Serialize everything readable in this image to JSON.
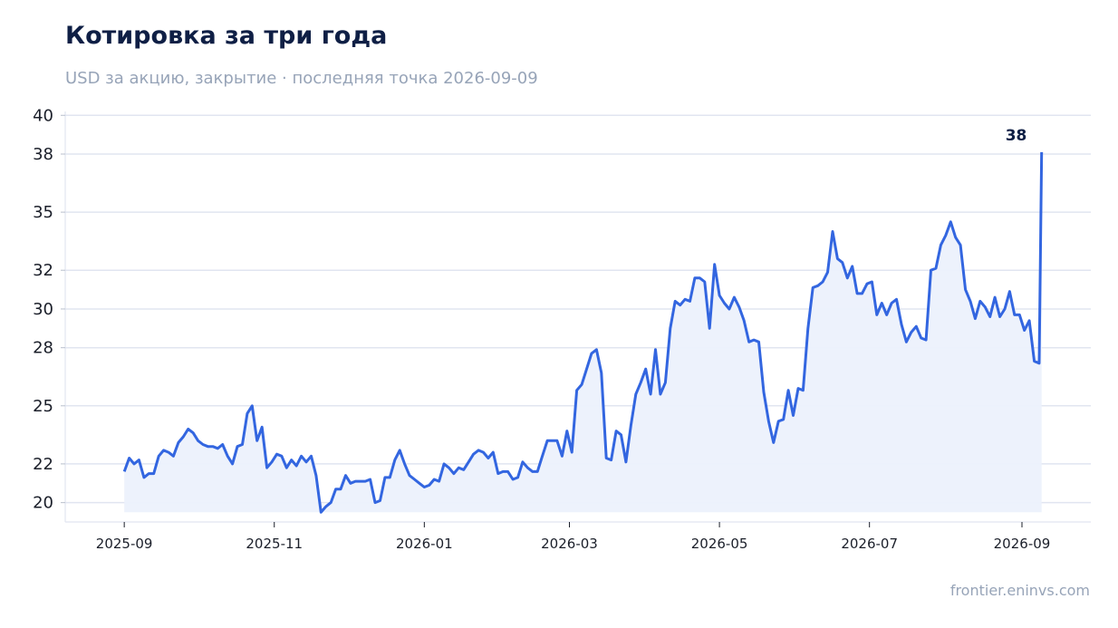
{
  "header": {
    "title": "Котировка за три года",
    "subtitle": "USD за акцию, закрытие · последняя точка 2026-09-09"
  },
  "footer": {
    "source": "frontier.eninvs.com"
  },
  "colors": {
    "line": "#3366e0",
    "fill": "#ecf1fc",
    "grid": "#e1e5f0",
    "title": "#0f1f45",
    "muted": "#97a4b8"
  },
  "chart_data": {
    "type": "line",
    "title": "Котировка за три года",
    "subtitle": "USD за акцию, закрытие · последняя точка 2026-09-09",
    "xlabel": "",
    "ylabel": "",
    "ylim": [
      19.0,
      40.2
    ],
    "xlim": [
      "2025-08-08",
      "2026-09-29"
    ],
    "grid": true,
    "y_ticks": [
      20,
      22,
      25,
      28,
      30,
      32,
      35,
      38,
      40
    ],
    "y_tick_labels": [
      "20",
      "22",
      "25",
      "28",
      "30",
      "32",
      "35",
      "38",
      "40"
    ],
    "x_ticks": [
      "2025-09-01",
      "2025-11-01",
      "2026-01-01",
      "2026-03-01",
      "2026-05-01",
      "2026-07-01",
      "2026-09-01"
    ],
    "x_tick_labels": [
      "2025-09",
      "2025-11",
      "2026-01",
      "2026-03",
      "2026-05",
      "2026-07",
      "2026-09"
    ],
    "last_value_label": "38",
    "series": [
      {
        "points": [
          [
            "2025-09-01",
            21.6
          ],
          [
            "2025-09-03",
            22.3
          ],
          [
            "2025-09-05",
            22.0
          ],
          [
            "2025-09-07",
            22.2
          ],
          [
            "2025-09-09",
            21.3
          ],
          [
            "2025-09-11",
            21.5
          ],
          [
            "2025-09-13",
            21.5
          ],
          [
            "2025-09-15",
            22.4
          ],
          [
            "2025-09-17",
            22.7
          ],
          [
            "2025-09-19",
            22.6
          ],
          [
            "2025-09-21",
            22.4
          ],
          [
            "2025-09-23",
            23.1
          ],
          [
            "2025-09-25",
            23.4
          ],
          [
            "2025-09-27",
            23.8
          ],
          [
            "2025-09-29",
            23.6
          ],
          [
            "2025-10-01",
            23.2
          ],
          [
            "2025-10-03",
            23.0
          ],
          [
            "2025-10-05",
            22.9
          ],
          [
            "2025-10-07",
            22.9
          ],
          [
            "2025-10-09",
            22.8
          ],
          [
            "2025-10-11",
            23.0
          ],
          [
            "2025-10-13",
            22.4
          ],
          [
            "2025-10-15",
            22.0
          ],
          [
            "2025-10-17",
            22.9
          ],
          [
            "2025-10-19",
            23.0
          ],
          [
            "2025-10-21",
            24.6
          ],
          [
            "2025-10-23",
            25.0
          ],
          [
            "2025-10-25",
            23.2
          ],
          [
            "2025-10-27",
            23.9
          ],
          [
            "2025-10-29",
            21.8
          ],
          [
            "2025-10-31",
            22.1
          ],
          [
            "2025-11-02",
            22.5
          ],
          [
            "2025-11-04",
            22.4
          ],
          [
            "2025-11-06",
            21.8
          ],
          [
            "2025-11-08",
            22.2
          ],
          [
            "2025-11-10",
            21.9
          ],
          [
            "2025-11-12",
            22.4
          ],
          [
            "2025-11-14",
            22.1
          ],
          [
            "2025-11-16",
            22.4
          ],
          [
            "2025-11-18",
            21.4
          ],
          [
            "2025-11-20",
            19.5
          ],
          [
            "2025-11-22",
            19.8
          ],
          [
            "2025-11-24",
            20.0
          ],
          [
            "2025-11-26",
            20.7
          ],
          [
            "2025-11-28",
            20.7
          ],
          [
            "2025-11-30",
            21.4
          ],
          [
            "2025-12-02",
            21.0
          ],
          [
            "2025-12-04",
            21.1
          ],
          [
            "2025-12-06",
            21.1
          ],
          [
            "2025-12-08",
            21.1
          ],
          [
            "2025-12-10",
            21.2
          ],
          [
            "2025-12-12",
            20.0
          ],
          [
            "2025-12-14",
            20.1
          ],
          [
            "2025-12-16",
            21.3
          ],
          [
            "2025-12-18",
            21.3
          ],
          [
            "2025-12-20",
            22.2
          ],
          [
            "2025-12-22",
            22.7
          ],
          [
            "2025-12-24",
            22.0
          ],
          [
            "2025-12-26",
            21.4
          ],
          [
            "2025-12-28",
            21.2
          ],
          [
            "2025-12-30",
            21.0
          ],
          [
            "2026-01-01",
            20.8
          ],
          [
            "2026-01-03",
            20.9
          ],
          [
            "2026-01-05",
            21.2
          ],
          [
            "2026-01-07",
            21.1
          ],
          [
            "2026-01-09",
            22.0
          ],
          [
            "2026-01-11",
            21.8
          ],
          [
            "2026-01-13",
            21.5
          ],
          [
            "2026-01-15",
            21.8
          ],
          [
            "2026-01-17",
            21.7
          ],
          [
            "2026-01-19",
            22.1
          ],
          [
            "2026-01-21",
            22.5
          ],
          [
            "2026-01-23",
            22.7
          ],
          [
            "2026-01-25",
            22.6
          ],
          [
            "2026-01-27",
            22.3
          ],
          [
            "2026-01-29",
            22.6
          ],
          [
            "2026-01-31",
            21.5
          ],
          [
            "2026-02-02",
            21.6
          ],
          [
            "2026-02-04",
            21.6
          ],
          [
            "2026-02-06",
            21.2
          ],
          [
            "2026-02-08",
            21.3
          ],
          [
            "2026-02-10",
            22.1
          ],
          [
            "2026-02-12",
            21.8
          ],
          [
            "2026-02-14",
            21.6
          ],
          [
            "2026-02-16",
            21.6
          ],
          [
            "2026-02-18",
            22.4
          ],
          [
            "2026-02-20",
            23.2
          ],
          [
            "2026-02-22",
            23.2
          ],
          [
            "2026-02-24",
            23.2
          ],
          [
            "2026-02-26",
            22.4
          ],
          [
            "2026-02-28",
            23.7
          ],
          [
            "2026-03-02",
            22.6
          ],
          [
            "2026-03-04",
            25.8
          ],
          [
            "2026-03-06",
            26.1
          ],
          [
            "2026-03-08",
            26.9
          ],
          [
            "2026-03-10",
            27.7
          ],
          [
            "2026-03-12",
            27.9
          ],
          [
            "2026-03-14",
            26.7
          ],
          [
            "2026-03-16",
            22.3
          ],
          [
            "2026-03-18",
            22.2
          ],
          [
            "2026-03-20",
            23.7
          ],
          [
            "2026-03-22",
            23.5
          ],
          [
            "2026-03-24",
            22.1
          ],
          [
            "2026-03-26",
            24.0
          ],
          [
            "2026-03-28",
            25.6
          ],
          [
            "2026-03-30",
            26.2
          ],
          [
            "2026-04-01",
            26.9
          ],
          [
            "2026-04-03",
            25.6
          ],
          [
            "2026-04-05",
            27.9
          ],
          [
            "2026-04-07",
            25.6
          ],
          [
            "2026-04-09",
            26.2
          ],
          [
            "2026-04-11",
            29.0
          ],
          [
            "2026-04-13",
            30.4
          ],
          [
            "2026-04-15",
            30.2
          ],
          [
            "2026-04-17",
            30.5
          ],
          [
            "2026-04-19",
            30.4
          ],
          [
            "2026-04-21",
            31.6
          ],
          [
            "2026-04-23",
            31.6
          ],
          [
            "2026-04-25",
            31.4
          ],
          [
            "2026-04-27",
            29.0
          ],
          [
            "2026-04-29",
            32.3
          ],
          [
            "2026-05-01",
            30.7
          ],
          [
            "2026-05-03",
            30.3
          ],
          [
            "2026-05-05",
            30.0
          ],
          [
            "2026-05-07",
            30.6
          ],
          [
            "2026-05-09",
            30.1
          ],
          [
            "2026-05-11",
            29.4
          ],
          [
            "2026-05-13",
            28.3
          ],
          [
            "2026-05-15",
            28.4
          ],
          [
            "2026-05-17",
            28.3
          ],
          [
            "2026-05-19",
            25.7
          ],
          [
            "2026-05-21",
            24.2
          ],
          [
            "2026-05-23",
            23.1
          ],
          [
            "2026-05-25",
            24.2
          ],
          [
            "2026-05-27",
            24.3
          ],
          [
            "2026-05-29",
            25.8
          ],
          [
            "2026-05-31",
            24.5
          ],
          [
            "2026-06-02",
            25.9
          ],
          [
            "2026-06-04",
            25.8
          ],
          [
            "2026-06-06",
            29.0
          ],
          [
            "2026-06-08",
            31.1
          ],
          [
            "2026-06-10",
            31.2
          ],
          [
            "2026-06-12",
            31.4
          ],
          [
            "2026-06-14",
            31.9
          ],
          [
            "2026-06-16",
            34.0
          ],
          [
            "2026-06-18",
            32.6
          ],
          [
            "2026-06-20",
            32.4
          ],
          [
            "2026-06-22",
            31.6
          ],
          [
            "2026-06-24",
            32.2
          ],
          [
            "2026-06-26",
            30.8
          ],
          [
            "2026-06-28",
            30.8
          ],
          [
            "2026-06-30",
            31.3
          ],
          [
            "2026-07-02",
            31.4
          ],
          [
            "2026-07-04",
            29.7
          ],
          [
            "2026-07-06",
            30.3
          ],
          [
            "2026-07-08",
            29.7
          ],
          [
            "2026-07-10",
            30.3
          ],
          [
            "2026-07-12",
            30.5
          ],
          [
            "2026-07-14",
            29.2
          ],
          [
            "2026-07-16",
            28.3
          ],
          [
            "2026-07-18",
            28.8
          ],
          [
            "2026-07-20",
            29.1
          ],
          [
            "2026-07-22",
            28.5
          ],
          [
            "2026-07-24",
            28.4
          ],
          [
            "2026-07-26",
            32.0
          ],
          [
            "2026-07-28",
            32.1
          ],
          [
            "2026-07-30",
            33.3
          ],
          [
            "2026-08-01",
            33.8
          ],
          [
            "2026-08-03",
            34.5
          ],
          [
            "2026-08-05",
            33.7
          ],
          [
            "2026-08-07",
            33.3
          ],
          [
            "2026-08-09",
            31.0
          ],
          [
            "2026-08-11",
            30.4
          ],
          [
            "2026-08-13",
            29.5
          ],
          [
            "2026-08-15",
            30.4
          ],
          [
            "2026-08-17",
            30.1
          ],
          [
            "2026-08-19",
            29.6
          ],
          [
            "2026-08-21",
            30.6
          ],
          [
            "2026-08-23",
            29.6
          ],
          [
            "2026-08-25",
            30.0
          ],
          [
            "2026-08-27",
            30.9
          ],
          [
            "2026-08-29",
            29.7
          ],
          [
            "2026-08-31",
            29.7
          ],
          [
            "2026-09-02",
            28.9
          ],
          [
            "2026-09-04",
            29.4
          ],
          [
            "2026-09-06",
            27.3
          ],
          [
            "2026-09-08",
            27.2
          ],
          [
            "2026-09-09",
            38.1
          ]
        ]
      }
    ]
  }
}
